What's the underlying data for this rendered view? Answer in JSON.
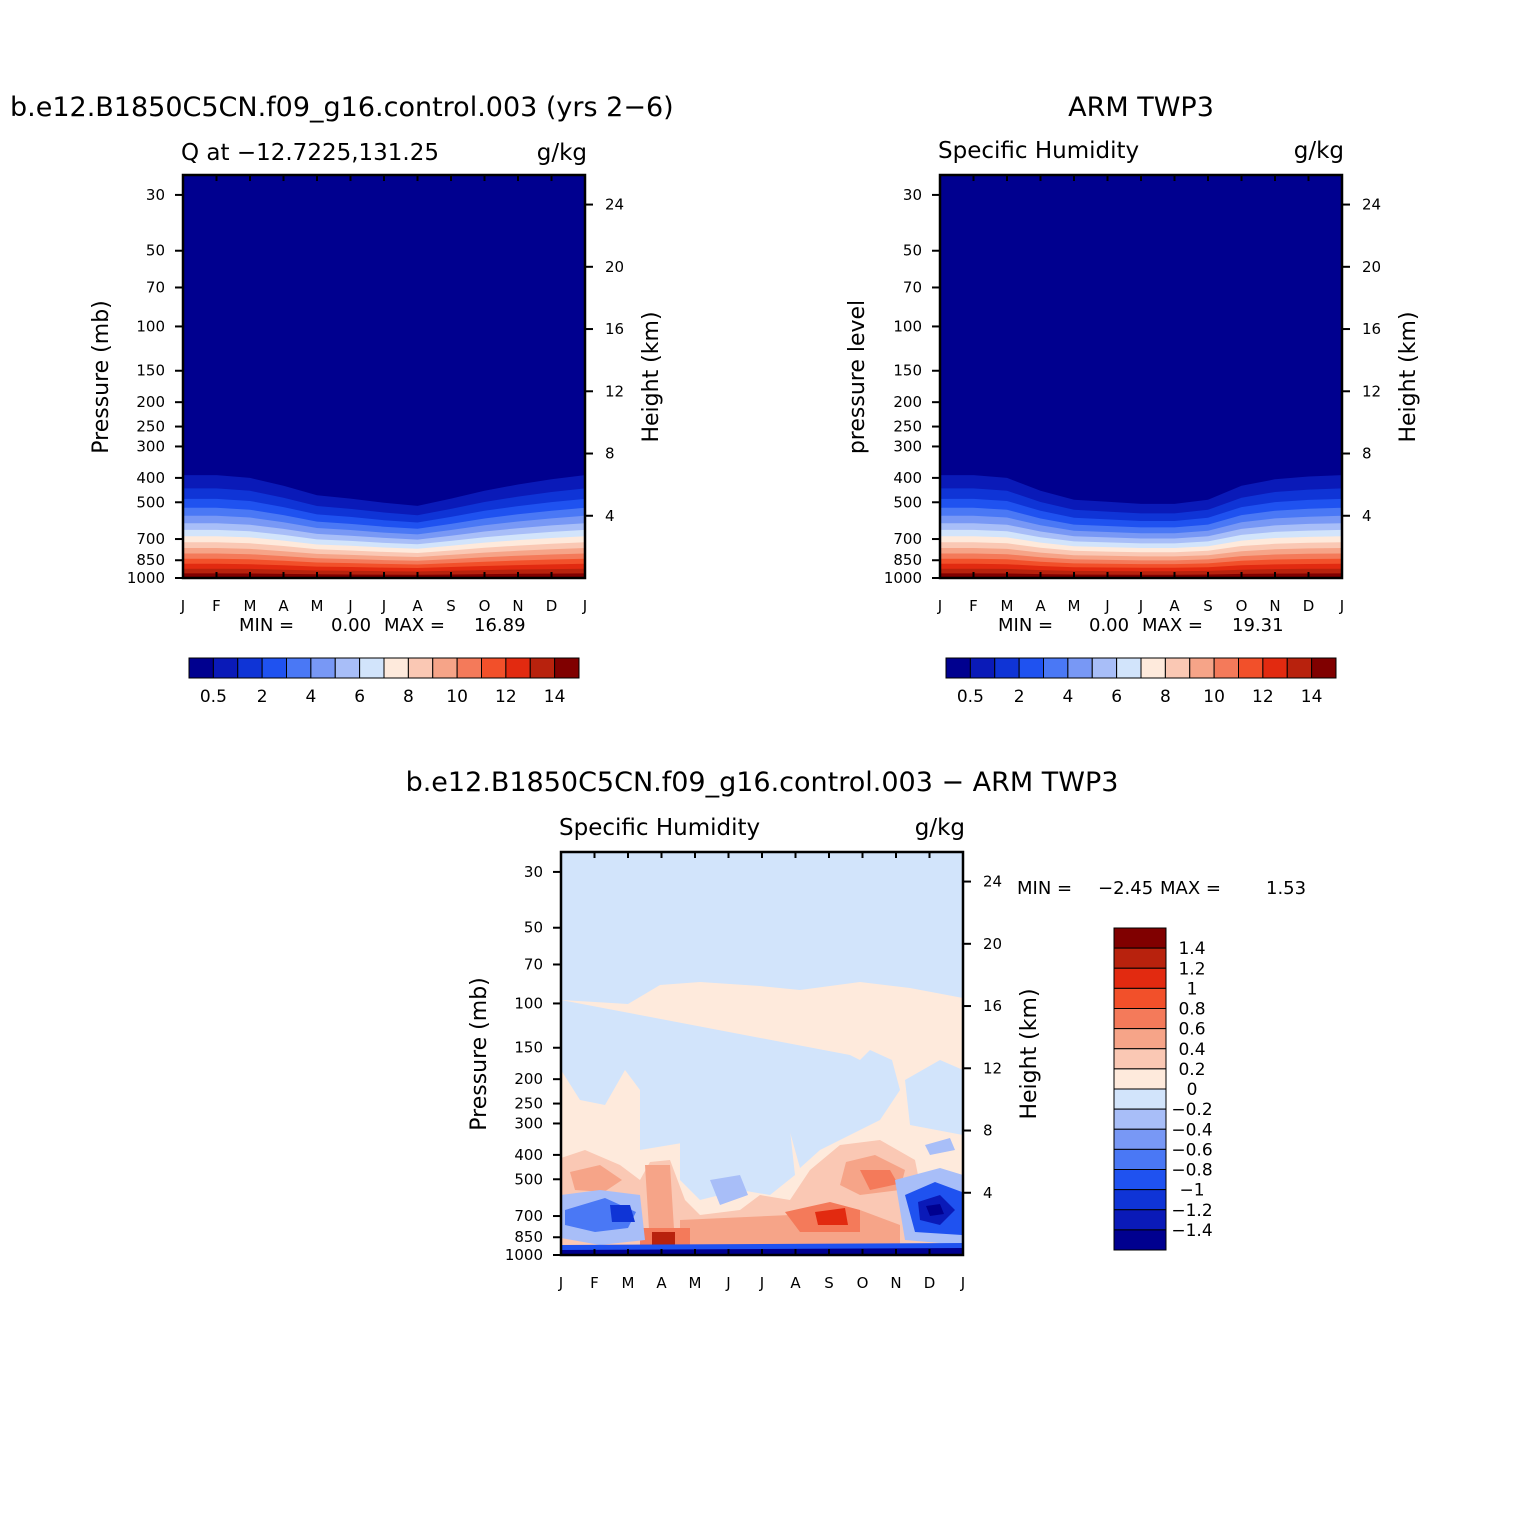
{
  "chart_data": [
    {
      "type": "heatmap",
      "title": "b.e12.B1850C5CN.f09_g16.control.003 (yrs 2−6)",
      "subtitle_left": "Q at −12.7225,131.25",
      "subtitle_right": "g/kg",
      "ylabel": "Pressure (mb)",
      "ylabel_right": "Height (km)",
      "x_ticks": [
        "J",
        "F",
        "M",
        "A",
        "M",
        "J",
        "J",
        "A",
        "S",
        "O",
        "N",
        "D",
        "J"
      ],
      "y_ticks": [
        30,
        50,
        70,
        100,
        150,
        200,
        250,
        300,
        400,
        500,
        700,
        850,
        1000
      ],
      "y_ticks_right": [
        24,
        20,
        16,
        12,
        8,
        4
      ],
      "min_label": "MIN =",
      "min_value": "0.00",
      "max_label": "MAX =",
      "max_value": "16.89",
      "colorbar": {
        "orientation": "horizontal",
        "labels": [
          "0.5",
          "2",
          "4",
          "6",
          "8",
          "10",
          "12",
          "14"
        ],
        "colors": [
          "#00008f",
          "#0a1ab8",
          "#0f34d6",
          "#1f52f0",
          "#4a78f5",
          "#7898f5",
          "#a8bef8",
          "#d2e4fb",
          "#feeadc",
          "#fac8b4",
          "#f6a488",
          "#f47a5a",
          "#f2502a",
          "#e22a10",
          "#b8220d",
          "#800000"
        ]
      },
      "field": "specific humidity, g/kg; x = month (Jan..Jan), y = pressure (mb)",
      "ylim": [
        1000,
        25
      ],
      "profile_1000mb": 16.9,
      "humid_layer_top_mb_by_month": [
        300,
        300,
        310,
        340,
        380,
        395,
        415,
        430,
        395,
        360,
        335,
        315,
        300
      ]
    },
    {
      "type": "heatmap",
      "title": "ARM TWP3",
      "subtitle_left": "Specific Humidity",
      "subtitle_right": "g/kg",
      "ylabel": "pressure level",
      "ylabel_right": "Height (km)",
      "x_ticks": [
        "J",
        "F",
        "M",
        "A",
        "M",
        "J",
        "J",
        "A",
        "S",
        "O",
        "N",
        "D",
        "J"
      ],
      "y_ticks": [
        30,
        50,
        70,
        100,
        150,
        200,
        250,
        300,
        400,
        500,
        700,
        850,
        1000
      ],
      "y_ticks_right": [
        24,
        20,
        16,
        12,
        8,
        4
      ],
      "min_label": "MIN =",
      "min_value": "0.00",
      "max_label": "MAX =",
      "max_value": "19.31",
      "colorbar": {
        "orientation": "horizontal",
        "labels": [
          "0.5",
          "2",
          "4",
          "6",
          "8",
          "10",
          "12",
          "14"
        ],
        "colors": [
          "#00008f",
          "#0a1ab8",
          "#0f34d6",
          "#1f52f0",
          "#4a78f5",
          "#7898f5",
          "#a8bef8",
          "#d2e4fb",
          "#feeadc",
          "#fac8b4",
          "#f6a488",
          "#f47a5a",
          "#f2502a",
          "#e22a10",
          "#b8220d",
          "#800000"
        ]
      },
      "ylim": [
        1000,
        25
      ],
      "profile_1000mb": 19.3,
      "humid_layer_top_mb_by_month": [
        300,
        300,
        310,
        360,
        400,
        410,
        420,
        420,
        400,
        340,
        315,
        305,
        300
      ]
    },
    {
      "type": "heatmap",
      "title": "b.e12.B1850C5CN.f09_g16.control.003 − ARM TWP3",
      "subtitle_left": "Specific Humidity",
      "subtitle_right": "g/kg",
      "ylabel": "Pressure (mb)",
      "ylabel_right": "Height (km)",
      "x_ticks": [
        "J",
        "F",
        "M",
        "A",
        "M",
        "J",
        "J",
        "A",
        "S",
        "O",
        "N",
        "D",
        "J"
      ],
      "y_ticks": [
        30,
        50,
        70,
        100,
        150,
        200,
        250,
        300,
        400,
        500,
        700,
        850,
        1000
      ],
      "y_ticks_right": [
        24,
        20,
        16,
        12,
        8,
        4
      ],
      "min_label": "MIN =",
      "min_value": "−2.45",
      "max_label": "MAX =",
      "max_value": "1.53",
      "colorbar": {
        "orientation": "vertical",
        "labels": [
          "1.4",
          "1.2",
          "1",
          "0.8",
          "0.6",
          "0.4",
          "0.2",
          "0",
          "−0.2",
          "−0.4",
          "−0.6",
          "−0.8",
          "−1",
          "−1.2",
          "−1.4"
        ],
        "colors": [
          "#800000",
          "#b8220d",
          "#e22a10",
          "#f2502a",
          "#f47a5a",
          "#f6a488",
          "#fac8b4",
          "#feeadc",
          "#d2e4fb",
          "#a8bef8",
          "#7898f5",
          "#4a78f5",
          "#1f52f0",
          "#0f34d6",
          "#0a1ab8",
          "#00008f"
        ]
      },
      "ylim": [
        1000,
        25
      ]
    }
  ]
}
